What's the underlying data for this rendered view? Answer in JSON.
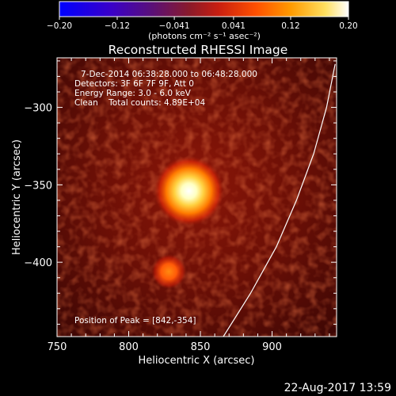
{
  "chart_data": {
    "type": "heatmap",
    "title": "Reconstructed RHESSI Image",
    "xlabel": "Heliocentric X (arcsec)",
    "ylabel": "Heliocentric Y (arcsec)",
    "xlim": [
      750,
      945
    ],
    "ylim": [
      -448,
      -268
    ],
    "x_ticks": [
      750,
      800,
      850,
      900
    ],
    "x_tick_labels": [
      "750",
      "800",
      "850",
      "900"
    ],
    "y_ticks": [
      -300,
      -350,
      -400
    ],
    "y_tick_labels": [
      "−300",
      "−350",
      "−400"
    ],
    "colorbar": {
      "range": [
        -0.2,
        0.2
      ],
      "ticks": [
        -0.2,
        -0.12,
        -0.041,
        0.041,
        0.12,
        0.2
      ],
      "tick_labels": [
        "−0.20",
        "−0.12",
        "−0.041",
        "0.041",
        "0.12",
        "0.20"
      ],
      "unit_label": "(photons cm⁻² s⁻¹ asec⁻²)",
      "colormap": "heat (blue-purple-red-orange-yellow-white)"
    },
    "info_lines": [
      "7-Dec-2014 06:38:28.000 to 06:48:28.000",
      "Detectors: 3F 6F 7F 9F, Att 0",
      "Energy Range: 3.0 - 6.0 keV",
      "Clean    Total counts: 4.89E+04"
    ],
    "peak_label": "Position of Peak = [842,-354]",
    "sources": [
      {
        "x": 842,
        "y": -354,
        "value": 0.2
      },
      {
        "x": 828,
        "y": -406,
        "value": 0.12
      }
    ],
    "limb_curve": [
      {
        "x": 866,
        "y": -448
      },
      {
        "x": 885,
        "y": -420
      },
      {
        "x": 903,
        "y": -390
      },
      {
        "x": 917,
        "y": -360
      },
      {
        "x": 929,
        "y": -330
      },
      {
        "x": 938,
        "y": -300
      },
      {
        "x": 944,
        "y": -272
      }
    ]
  },
  "timestamp": "22-Aug-2017 13:59",
  "colors": {
    "background": "#000000",
    "axes": "#ffffff",
    "limb": "#ffffff"
  }
}
